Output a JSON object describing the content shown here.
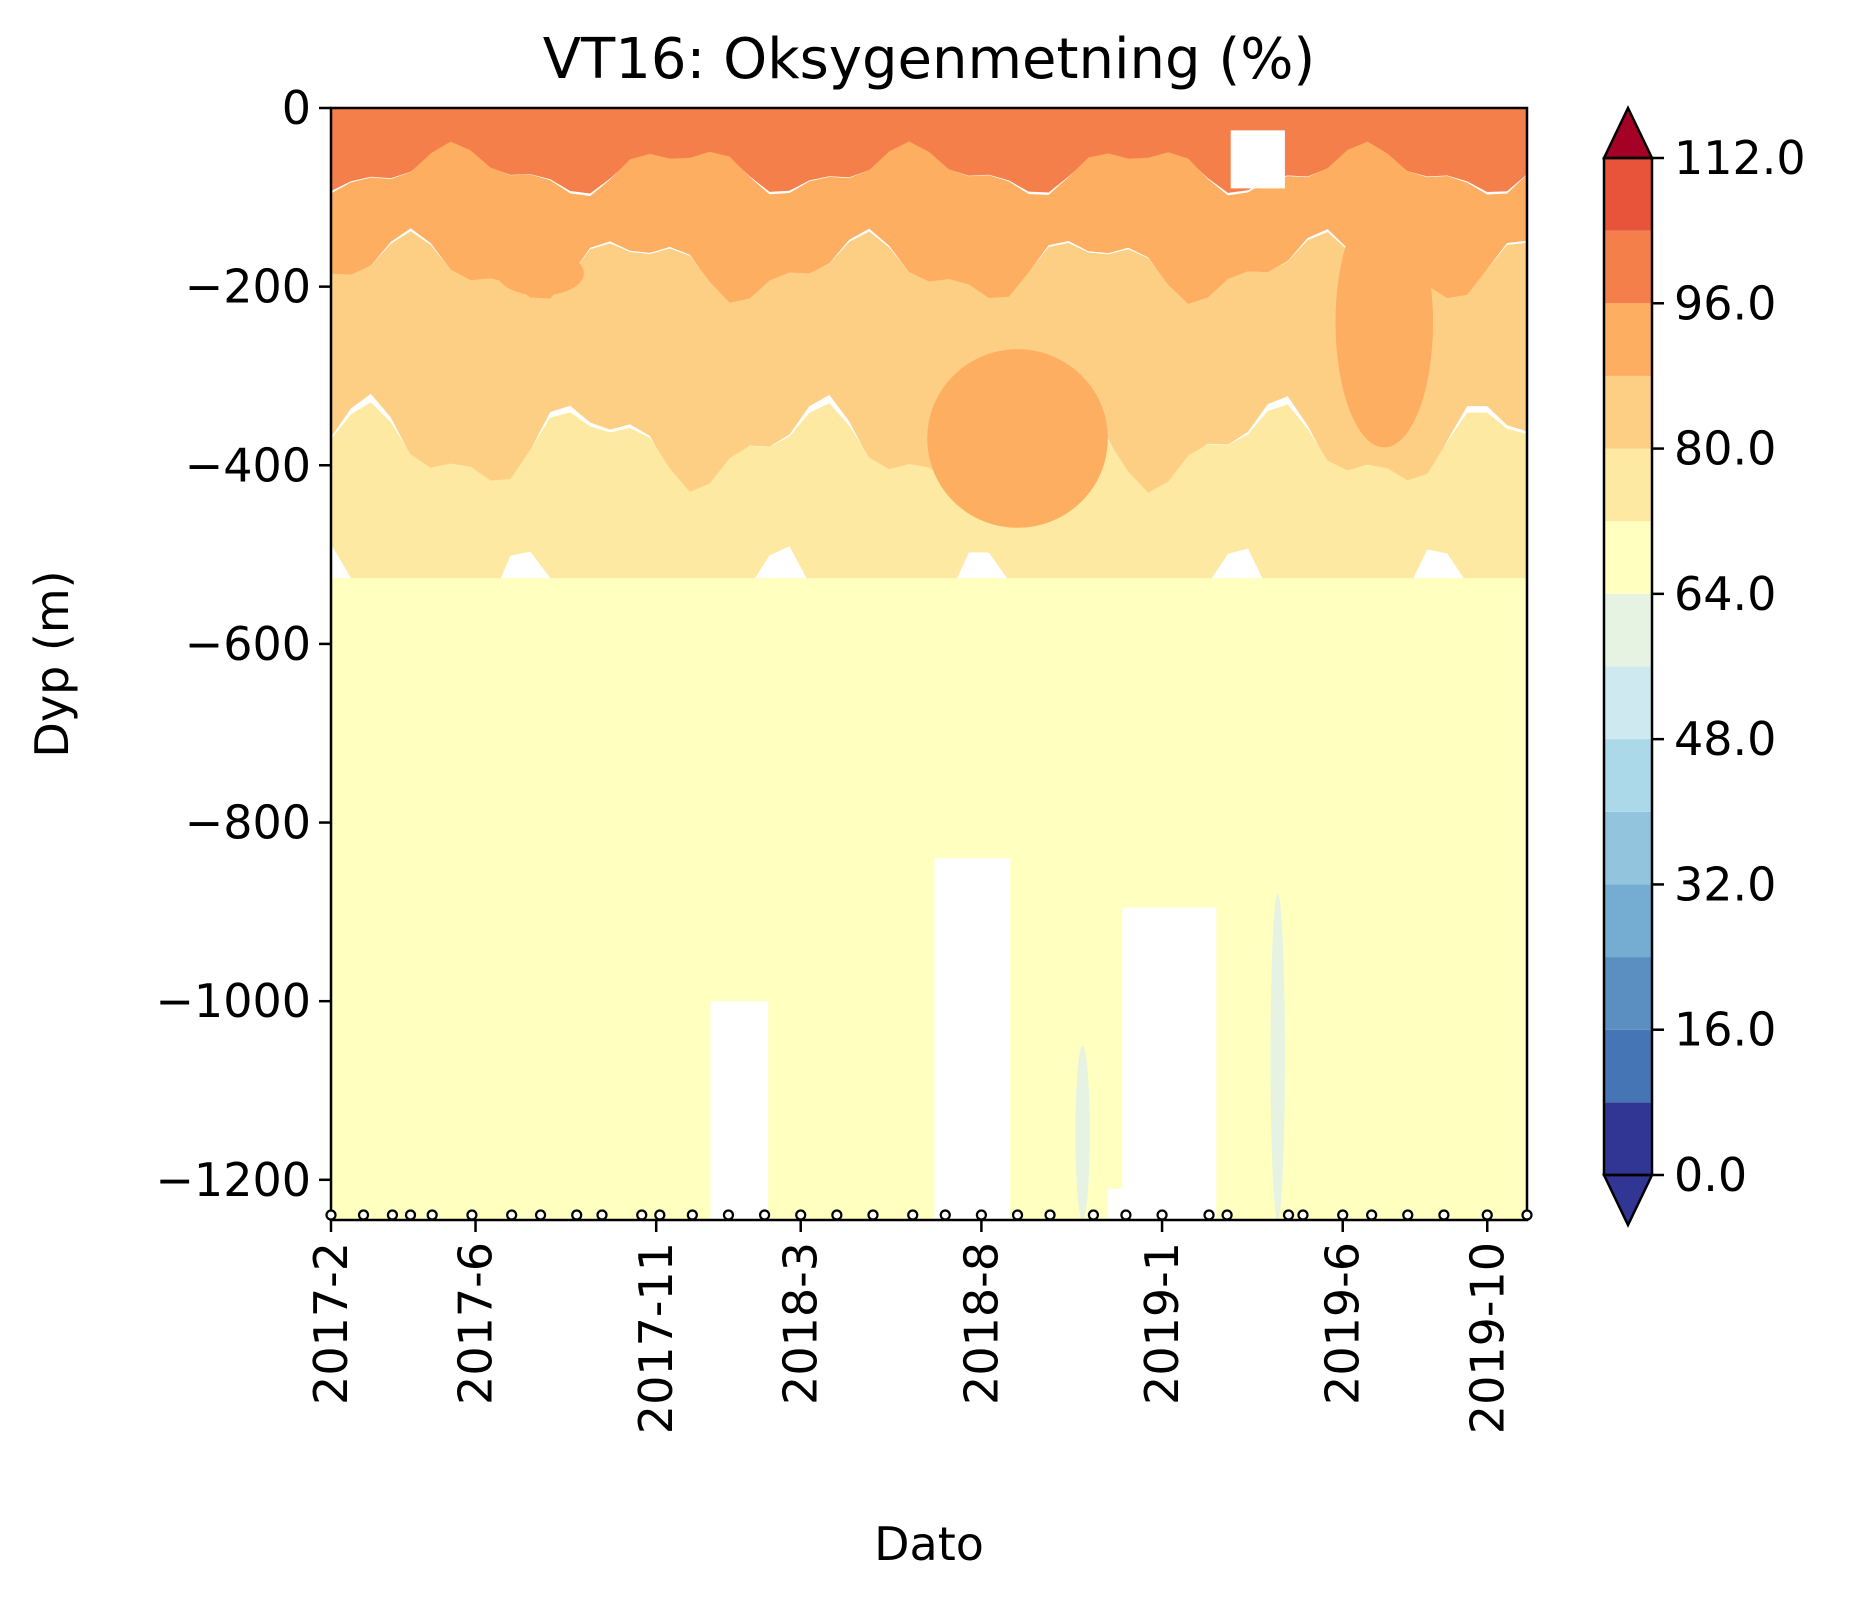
{
  "chart_data": {
    "type": "heatmap",
    "title": "VT16: Oksygenmetning (%)",
    "xlabel": "Dato",
    "ylabel": "Dyp (m)",
    "x_ticks": [
      "2017-2",
      "2017-6",
      "2017-11",
      "2018-3",
      "2018-8",
      "2019-1",
      "2019-6",
      "2019-10"
    ],
    "x_tick_months": [
      0,
      4,
      9,
      13,
      18,
      23,
      28,
      32
    ],
    "x_range_months": [
      0,
      33.1
    ],
    "y_ticks": [
      0,
      -200,
      -400,
      -600,
      -800,
      -1000,
      -1200
    ],
    "y_tick_labels": [
      "0",
      "−200",
      "−400",
      "−600",
      "−800",
      "−1000",
      "−1200"
    ],
    "ylim": [
      -1245,
      0
    ],
    "colorbar": {
      "ticks": [
        "0.0",
        "16.0",
        "32.0",
        "48.0",
        "64.0",
        "80.0",
        "96.0",
        "112.0"
      ],
      "levels": [
        0,
        8,
        16,
        24,
        32,
        40,
        48,
        56,
        64,
        72,
        80,
        88,
        96,
        104,
        112
      ],
      "colors": [
        "#313695",
        "#4575b4",
        "#5b8fc2",
        "#74add1",
        "#93c4de",
        "#abd9e9",
        "#cfe9f1",
        "#e6f3e2",
        "#ffffbf",
        "#fde9a1",
        "#fdcf84",
        "#fdae61",
        "#f57f4b",
        "#e8543a",
        "#d73027"
      ],
      "under_color": "#313695",
      "over_color": "#a50026",
      "extend": "both"
    },
    "sample_months": [
      0,
      0.9,
      1.7,
      2.2,
      2.8,
      3.9,
      5.0,
      5.8,
      6.8,
      7.5,
      8.6,
      9.1,
      10.0,
      11.0,
      12.0,
      13.0,
      14.0,
      15.0,
      16.1,
      17.0,
      18.0,
      19.0,
      19.9,
      21.1,
      22.0,
      23.0,
      24.3,
      24.8,
      26.5,
      26.9,
      28.0,
      28.8,
      29.8,
      30.8,
      32.0,
      33.1
    ],
    "levels_profile": [
      {
        "depth_to": -70,
        "value": 100
      },
      {
        "depth_to": -180,
        "value": 92
      },
      {
        "depth_to": -380,
        "value": 84
      },
      {
        "depth_to": -560,
        "value": 76
      },
      {
        "depth_to": -1245,
        "value": 68
      }
    ],
    "features": [
      {
        "months": [
          4.6,
          7.0
        ],
        "depth": [
          -160,
          -210
        ],
        "value": 92
      },
      {
        "months": [
          16.5,
          21.5
        ],
        "depth": [
          -270,
          -470
        ],
        "value": 92
      },
      {
        "months": [
          27.8,
          30.5
        ],
        "depth": [
          -100,
          -380
        ],
        "value": 92
      },
      {
        "months": [
          26.0,
          26.4
        ],
        "depth": [
          -880,
          -1245
        ],
        "value": 60
      },
      {
        "months": [
          20.6,
          21.0
        ],
        "depth": [
          -1050,
          -1245
        ],
        "value": 60
      }
    ],
    "no_data": [
      {
        "months": [
          10.5,
          12.1
        ],
        "depth": [
          -1000,
          -1245
        ]
      },
      {
        "months": [
          16.7,
          18.8
        ],
        "depth": [
          -840,
          -1245
        ]
      },
      {
        "months": [
          21.5,
          22.3
        ],
        "depth": [
          -1210,
          -1245
        ]
      },
      {
        "months": [
          21.9,
          24.5
        ],
        "depth": [
          -895,
          -1245
        ]
      },
      {
        "months": [
          24.9,
          26.4
        ],
        "depth": [
          -25,
          -90
        ]
      }
    ]
  }
}
